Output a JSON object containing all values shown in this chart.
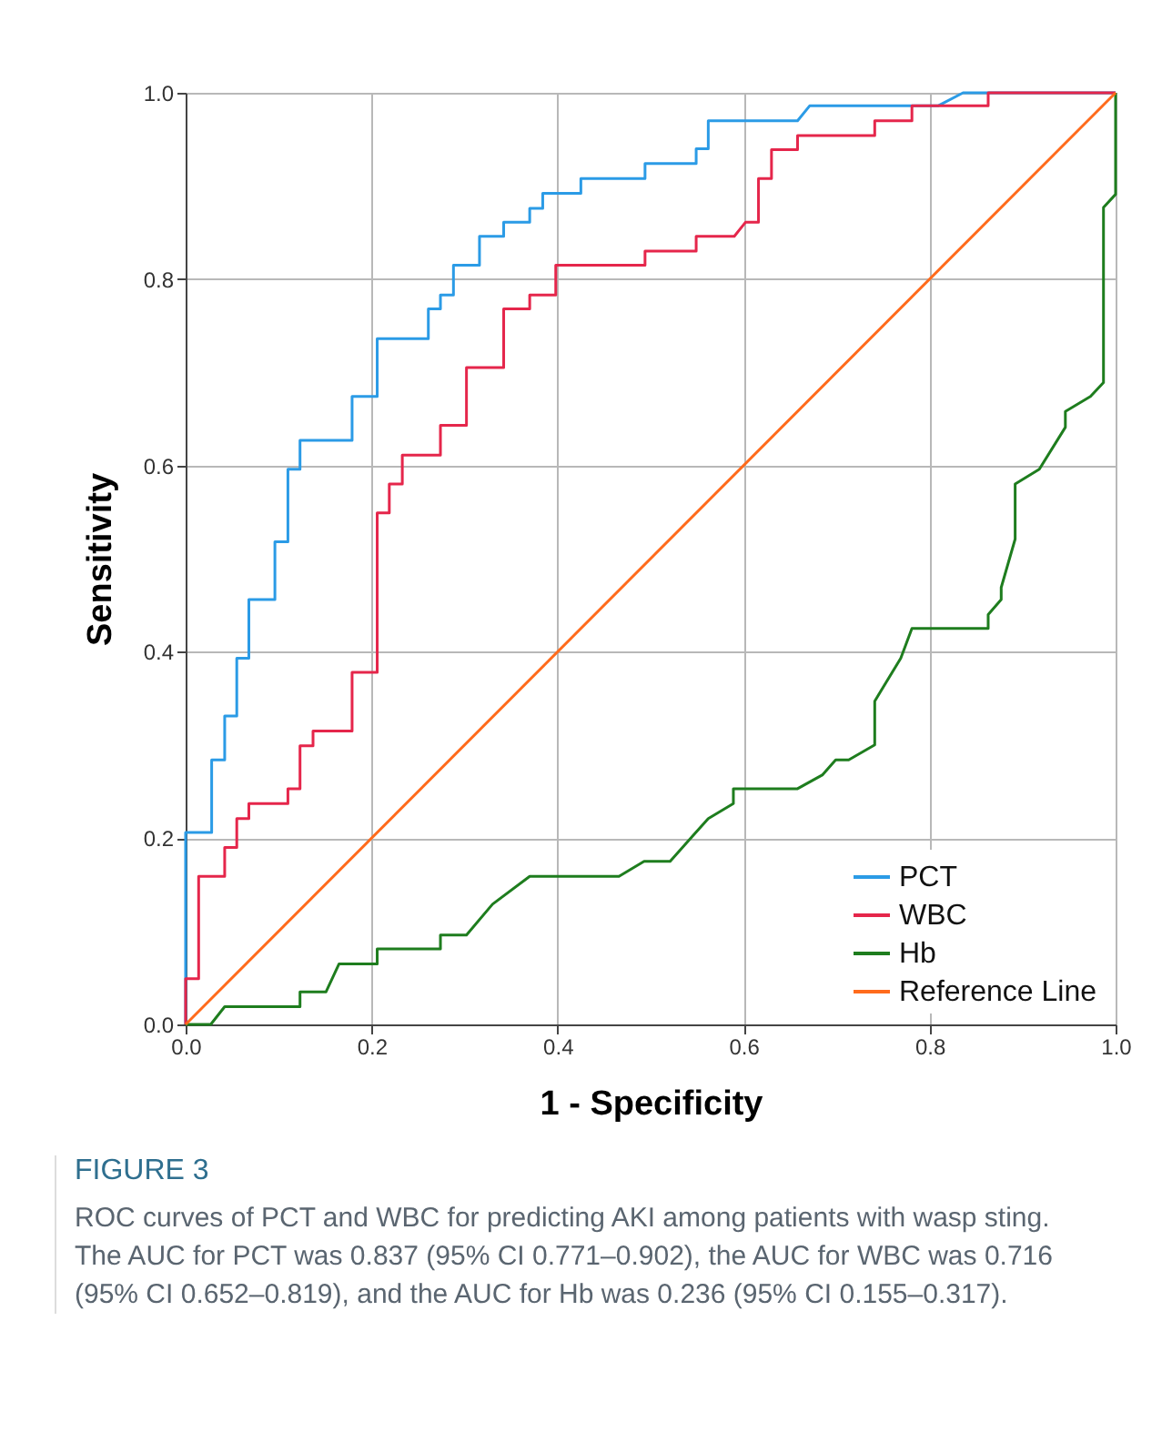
{
  "chart_data": {
    "type": "line",
    "xlabel": "1 - Specificity",
    "ylabel": "Sensitivity",
    "xlim": [
      0,
      1
    ],
    "ylim": [
      0,
      1
    ],
    "xticks": [
      {
        "value": 0,
        "label": "0.0"
      },
      {
        "value": 0.2,
        "label": "0.2"
      },
      {
        "value": 0.4,
        "label": "0.4"
      },
      {
        "value": 0.6,
        "label": "0.6"
      },
      {
        "value": 0.8,
        "label": "0.8"
      },
      {
        "value": 1,
        "label": "1.0"
      }
    ],
    "yticks": [
      {
        "value": 0,
        "label": "0.0"
      },
      {
        "value": 0.2,
        "label": "0.2"
      },
      {
        "value": 0.4,
        "label": "0.4"
      },
      {
        "value": 0.6,
        "label": "0.6"
      },
      {
        "value": 0.8,
        "label": "0.8"
      },
      {
        "value": 1,
        "label": "1.0"
      }
    ],
    "grid": true,
    "legend": "bottom right",
    "line_style": "solid",
    "annotations": [
      "FIGURE 3",
      "ROC curves of PCT and WBC for predicting AKI among patients with wasp sting. The AUC for PCT was 0.837 (95% CI 0.771–0.902), the AUC for WBC was 0.716 (95% CI 0.652–0.819), and the AUC for Hb was 0.236 (95% CI 0.155–0.317)."
    ],
    "series": [
      {
        "name": "PCT",
        "color": "#2b9be6",
        "x": [
          0,
          0,
          0.028,
          0.028,
          0.042,
          0.042,
          0.055,
          0.055,
          0.068,
          0.068,
          0.096,
          0.096,
          0.11,
          0.11,
          0.123,
          0.123,
          0.179,
          0.179,
          0.206,
          0.206,
          0.261,
          0.261,
          0.274,
          0.274,
          0.288,
          0.288,
          0.316,
          0.316,
          0.342,
          0.342,
          0.37,
          0.37,
          0.384,
          0.384,
          0.425,
          0.425,
          0.494,
          0.494,
          0.549,
          0.549,
          0.562,
          0.562,
          0.658,
          0.671,
          0.809,
          0.836,
          1
        ],
        "values": [
          0,
          0.206,
          0.206,
          0.284,
          0.284,
          0.331,
          0.331,
          0.393,
          0.393,
          0.456,
          0.456,
          0.518,
          0.518,
          0.596,
          0.596,
          0.627,
          0.627,
          0.674,
          0.674,
          0.736,
          0.736,
          0.768,
          0.768,
          0.783,
          0.783,
          0.815,
          0.815,
          0.846,
          0.846,
          0.861,
          0.861,
          0.876,
          0.876,
          0.892,
          0.892,
          0.908,
          0.908,
          0.924,
          0.924,
          0.94,
          0.94,
          0.97,
          0.97,
          0.986,
          0.986,
          1,
          1
        ]
      },
      {
        "name": "WBC",
        "color": "#e5264b",
        "x": [
          0,
          0,
          0.014,
          0.014,
          0.042,
          0.042,
          0.055,
          0.055,
          0.068,
          0.068,
          0.11,
          0.11,
          0.123,
          0.123,
          0.137,
          0.137,
          0.179,
          0.179,
          0.206,
          0.206,
          0.219,
          0.219,
          0.233,
          0.233,
          0.274,
          0.274,
          0.302,
          0.302,
          0.342,
          0.342,
          0.37,
          0.37,
          0.398,
          0.398,
          0.494,
          0.494,
          0.549,
          0.549,
          0.59,
          0.602,
          0.616,
          0.616,
          0.63,
          0.63,
          0.658,
          0.658,
          0.741,
          0.741,
          0.781,
          0.781,
          0.863,
          0.863,
          1
        ],
        "values": [
          0,
          0.049,
          0.049,
          0.159,
          0.159,
          0.19,
          0.19,
          0.221,
          0.221,
          0.237,
          0.237,
          0.253,
          0.253,
          0.299,
          0.299,
          0.315,
          0.315,
          0.378,
          0.378,
          0.549,
          0.549,
          0.58,
          0.58,
          0.611,
          0.611,
          0.643,
          0.643,
          0.705,
          0.705,
          0.768,
          0.768,
          0.783,
          0.783,
          0.815,
          0.815,
          0.83,
          0.83,
          0.846,
          0.846,
          0.861,
          0.861,
          0.908,
          0.908,
          0.939,
          0.939,
          0.954,
          0.954,
          0.97,
          0.97,
          0.986,
          0.986,
          1,
          1
        ]
      },
      {
        "name": "Hb",
        "color": "#1e7d1e",
        "x": [
          0,
          0.027,
          0.042,
          0.123,
          0.123,
          0.151,
          0.165,
          0.206,
          0.206,
          0.274,
          0.274,
          0.302,
          0.33,
          0.37,
          0.466,
          0.493,
          0.521,
          0.562,
          0.589,
          0.589,
          0.658,
          0.685,
          0.699,
          0.713,
          0.741,
          0.741,
          0.769,
          0.781,
          0.863,
          0.863,
          0.877,
          0.877,
          0.892,
          0.892,
          0.918,
          0.946,
          0.946,
          0.973,
          0.987,
          0.987,
          1,
          1
        ],
        "values": [
          0,
          0,
          0.019,
          0.019,
          0.035,
          0.035,
          0.065,
          0.065,
          0.081,
          0.081,
          0.096,
          0.096,
          0.129,
          0.159,
          0.159,
          0.175,
          0.175,
          0.221,
          0.237,
          0.253,
          0.253,
          0.268,
          0.284,
          0.284,
          0.3,
          0.347,
          0.393,
          0.425,
          0.425,
          0.44,
          0.456,
          0.469,
          0.521,
          0.58,
          0.596,
          0.641,
          0.658,
          0.674,
          0.689,
          0.877,
          0.891,
          1
        ]
      },
      {
        "name": "Reference Line",
        "color": "#ff6b1c",
        "x": [
          0,
          1
        ],
        "values": [
          0,
          1
        ]
      }
    ]
  }
}
